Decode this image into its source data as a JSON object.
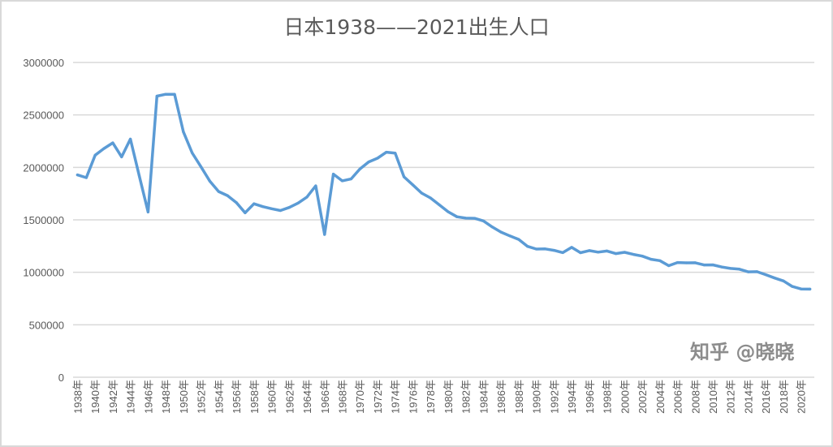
{
  "chart_data": {
    "type": "line",
    "title": "日本1938——2021出生人口",
    "xlabel": "",
    "ylabel": "",
    "ylim": [
      0,
      3000000
    ],
    "yticks": [
      "0",
      "500000",
      "1000000",
      "1500000",
      "2000000",
      "2500000",
      "3000000"
    ],
    "grid": true,
    "legend": "none",
    "color": "#5b9bd5",
    "x_label_suffix": "年",
    "x_label_every": 2,
    "x": [
      1938,
      1939,
      1940,
      1941,
      1942,
      1943,
      1944,
      1945,
      1946,
      1947,
      1948,
      1949,
      1950,
      1951,
      1952,
      1953,
      1954,
      1955,
      1956,
      1957,
      1958,
      1959,
      1960,
      1961,
      1962,
      1963,
      1964,
      1965,
      1966,
      1967,
      1968,
      1969,
      1970,
      1971,
      1972,
      1973,
      1974,
      1975,
      1976,
      1977,
      1978,
      1979,
      1980,
      1981,
      1982,
      1983,
      1984,
      1985,
      1986,
      1987,
      1988,
      1989,
      1990,
      1991,
      1992,
      1993,
      1994,
      1995,
      1996,
      1997,
      1998,
      1999,
      2000,
      2001,
      2002,
      2003,
      2004,
      2005,
      2006,
      2007,
      2008,
      2009,
      2010,
      2011,
      2012,
      2013,
      2014,
      2015,
      2016,
      2017,
      2018,
      2019,
      2020,
      2021
    ],
    "values": [
      1928000,
      1902000,
      2116000,
      2180000,
      2234000,
      2100000,
      2270000,
      1920000,
      1575000,
      2679000,
      2697000,
      2697000,
      2338000,
      2138000,
      2005000,
      1868000,
      1770000,
      1731000,
      1665000,
      1567000,
      1653000,
      1626000,
      1606000,
      1589000,
      1618000,
      1660000,
      1717000,
      1824000,
      1361000,
      1936000,
      1872000,
      1890000,
      1984000,
      2052000,
      2088000,
      2145000,
      2136000,
      1910000,
      1833000,
      1755000,
      1709000,
      1643000,
      1577000,
      1529000,
      1516000,
      1515000,
      1490000,
      1432000,
      1383000,
      1347000,
      1314000,
      1247000,
      1222000,
      1223000,
      1209000,
      1188000,
      1238000,
      1187000,
      1207000,
      1192000,
      1203000,
      1178000,
      1191000,
      1171000,
      1154000,
      1124000,
      1111000,
      1063000,
      1093000,
      1090000,
      1091000,
      1070000,
      1071000,
      1051000,
      1037000,
      1030000,
      1004000,
      1006000,
      977000,
      946000,
      918000,
      865000,
      841000,
      840000
    ]
  },
  "watermark": "知乎 @晓晓"
}
